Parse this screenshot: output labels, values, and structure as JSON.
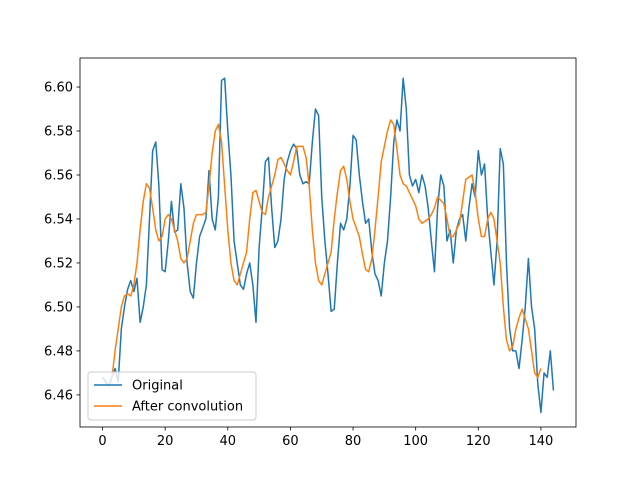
{
  "chart_data": {
    "type": "line",
    "series": [
      {
        "name": "Original",
        "color": "#1f77b4",
        "x": [
          0,
          1,
          2,
          3,
          4,
          5,
          6,
          7,
          8,
          9,
          10,
          11,
          12,
          13,
          14,
          15,
          16,
          17,
          18,
          19,
          20,
          21,
          22,
          23,
          24,
          25,
          26,
          27,
          28,
          29,
          30,
          31,
          32,
          33,
          34,
          35,
          36,
          37,
          38,
          39,
          40,
          41,
          42,
          43,
          44,
          45,
          46,
          47,
          48,
          49,
          50,
          51,
          52,
          53,
          54,
          55,
          56,
          57,
          58,
          59,
          60,
          61,
          62,
          63,
          64,
          65,
          66,
          67,
          68,
          69,
          70,
          71,
          72,
          73,
          74,
          75,
          76,
          77,
          78,
          79,
          80,
          81,
          82,
          83,
          84,
          85,
          86,
          87,
          88,
          89,
          90,
          91,
          92,
          93,
          94,
          95,
          96,
          97,
          98,
          99,
          100,
          101,
          102,
          103,
          104,
          105,
          106,
          107,
          108,
          109,
          110,
          111,
          112,
          113,
          114,
          115,
          116,
          117,
          118,
          119,
          120,
          121,
          122,
          123,
          124,
          125,
          126,
          127,
          128,
          129,
          130,
          131,
          132,
          133,
          134,
          135,
          136,
          137,
          138,
          139,
          140,
          141,
          142,
          143,
          144
        ],
        "values": [
          6.468,
          6.466,
          6.464,
          6.468,
          6.472,
          6.466,
          6.49,
          6.5,
          6.508,
          6.512,
          6.507,
          6.513,
          6.493,
          6.5,
          6.51,
          6.54,
          6.571,
          6.575,
          6.555,
          6.517,
          6.516,
          6.53,
          6.548,
          6.534,
          6.535,
          6.556,
          6.545,
          6.52,
          6.507,
          6.504,
          6.52,
          6.532,
          6.536,
          6.54,
          6.562,
          6.54,
          6.535,
          6.55,
          6.603,
          6.604,
          6.58,
          6.56,
          6.53,
          6.52,
          6.51,
          6.508,
          6.515,
          6.52,
          6.51,
          6.493,
          6.527,
          6.545,
          6.566,
          6.568,
          6.545,
          6.527,
          6.53,
          6.54,
          6.558,
          6.566,
          6.571,
          6.574,
          6.572,
          6.56,
          6.556,
          6.557,
          6.556,
          6.575,
          6.59,
          6.587,
          6.55,
          6.53,
          6.515,
          6.498,
          6.499,
          6.52,
          6.538,
          6.535,
          6.54,
          6.555,
          6.578,
          6.576,
          6.56,
          6.548,
          6.538,
          6.54,
          6.525,
          6.515,
          6.512,
          6.505,
          6.52,
          6.53,
          6.55,
          6.575,
          6.585,
          6.58,
          6.604,
          6.59,
          6.56,
          6.555,
          6.558,
          6.552,
          6.56,
          6.555,
          6.545,
          6.53,
          6.516,
          6.545,
          6.56,
          6.555,
          6.53,
          6.535,
          6.52,
          6.535,
          6.54,
          6.542,
          6.53,
          6.545,
          6.556,
          6.55,
          6.571,
          6.56,
          6.565,
          6.54,
          6.525,
          6.51,
          6.53,
          6.572,
          6.565,
          6.52,
          6.49,
          6.48,
          6.48,
          6.472,
          6.485,
          6.5,
          6.522,
          6.5,
          6.49,
          6.465,
          6.452,
          6.47,
          6.468,
          6.48,
          6.462
        ]
      },
      {
        "name": "After convolution",
        "color": "#ff7f0e",
        "x": [
          3,
          4,
          5,
          6,
          7,
          8,
          9,
          10,
          11,
          12,
          13,
          14,
          15,
          16,
          17,
          18,
          19,
          20,
          21,
          22,
          23,
          24,
          25,
          26,
          27,
          28,
          29,
          30,
          31,
          32,
          33,
          34,
          35,
          36,
          37,
          38,
          39,
          40,
          41,
          42,
          43,
          44,
          46,
          47,
          48,
          49,
          50,
          51,
          52,
          53,
          55,
          56,
          57,
          58,
          59,
          60,
          61,
          62,
          64,
          65,
          66,
          67,
          68,
          69,
          70,
          71,
          73,
          74,
          75,
          76,
          77,
          78,
          79,
          80,
          82,
          83,
          84,
          85,
          86,
          87,
          88,
          89,
          91,
          92,
          93,
          94,
          95,
          96,
          97,
          98,
          100,
          101,
          102,
          103,
          104,
          105,
          106,
          107,
          109,
          110,
          111,
          112,
          113,
          114,
          115,
          116,
          118,
          119,
          120,
          121,
          122,
          123,
          124,
          125,
          127,
          128,
          129,
          130,
          131,
          132,
          133,
          134,
          136,
          137,
          138,
          139,
          140
        ],
        "values": [
          6.468,
          6.48,
          6.49,
          6.5,
          6.505,
          6.506,
          6.505,
          6.51,
          6.52,
          6.535,
          6.548,
          6.556,
          6.554,
          6.545,
          6.535,
          6.53,
          6.532,
          6.54,
          6.542,
          6.54,
          6.535,
          6.53,
          6.522,
          6.52,
          6.522,
          6.53,
          6.538,
          6.542,
          6.542,
          6.542,
          6.543,
          6.555,
          6.57,
          6.58,
          6.583,
          6.575,
          6.555,
          6.535,
          6.52,
          6.512,
          6.51,
          6.515,
          6.525,
          6.54,
          6.552,
          6.553,
          6.548,
          6.543,
          6.542,
          6.55,
          6.56,
          6.567,
          6.568,
          6.565,
          6.562,
          6.56,
          6.566,
          6.573,
          6.573,
          6.568,
          6.555,
          6.535,
          6.52,
          6.512,
          6.51,
          6.515,
          6.525,
          6.54,
          6.552,
          6.562,
          6.564,
          6.558,
          6.548,
          6.54,
          6.532,
          6.524,
          6.517,
          6.516,
          6.522,
          6.535,
          6.55,
          6.566,
          6.58,
          6.585,
          6.583,
          6.572,
          6.56,
          6.556,
          6.555,
          6.552,
          6.546,
          6.54,
          6.538,
          6.539,
          6.54,
          6.542,
          6.545,
          6.55,
          6.547,
          6.54,
          6.532,
          6.532,
          6.535,
          6.538,
          6.548,
          6.558,
          6.56,
          6.552,
          6.54,
          6.532,
          6.532,
          6.54,
          6.543,
          6.54,
          6.52,
          6.5,
          6.485,
          6.48,
          6.482,
          6.49,
          6.495,
          6.499,
          6.49,
          6.48,
          6.47,
          6.468,
          6.472
        ]
      }
    ],
    "xlim": [
      -7.2,
      151.2
    ],
    "xticks": [
      0,
      20,
      40,
      60,
      80,
      100,
      120,
      140
    ],
    "ylim": [
      6.4454,
      6.6132
    ],
    "yticks": [
      6.46,
      6.48,
      {
        "value": 6.5,
        "label": "6.50"
      },
      6.52,
      6.54,
      6.56,
      6.58,
      {
        "value": 6.6,
        "label": "6.60"
      }
    ],
    "legend": "lower left"
  }
}
